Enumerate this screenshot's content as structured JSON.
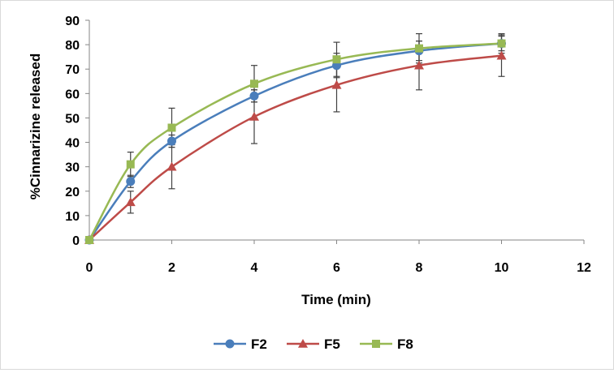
{
  "chart_data": {
    "type": "line",
    "title": "",
    "xlabel": "Time (min)",
    "ylabel": "%Cinnarizine released",
    "xlim": [
      0,
      12
    ],
    "ylim": [
      0,
      90
    ],
    "x_ticks": [
      0,
      2,
      4,
      6,
      8,
      10,
      12
    ],
    "y_ticks": [
      0,
      10,
      20,
      30,
      40,
      50,
      60,
      70,
      80,
      90
    ],
    "x_tick_labels": [
      "0",
      "2",
      "4",
      "6",
      "8",
      "10",
      "12"
    ],
    "y_tick_labels": [
      "0",
      "10",
      "20",
      "30",
      "40",
      "50",
      "60",
      "70",
      "80",
      "90"
    ],
    "grid": false,
    "legend_position": "bottom",
    "x": [
      0,
      1,
      2,
      4,
      6,
      8,
      10
    ],
    "series": [
      {
        "name": "F2",
        "color": "#4a7ebb",
        "marker": "circle",
        "values": [
          0,
          24,
          40.5,
          59,
          71.5,
          77.5,
          80.5
        ],
        "errors": [
          0,
          2.5,
          2.5,
          2.5,
          5,
          4,
          3
        ]
      },
      {
        "name": "F5",
        "color": "#be4b48",
        "marker": "triangle",
        "values": [
          0,
          15.5,
          30,
          50.5,
          63.5,
          71.5,
          75.5
        ],
        "errors": [
          0,
          4.5,
          9,
          11,
          11,
          10,
          8.5
        ]
      },
      {
        "name": "F8",
        "color": "#98b954",
        "marker": "square",
        "values": [
          0,
          31,
          46,
          64,
          74,
          78.5,
          80.5
        ],
        "errors": [
          0,
          5,
          8,
          7.5,
          7,
          6,
          4
        ]
      }
    ]
  }
}
